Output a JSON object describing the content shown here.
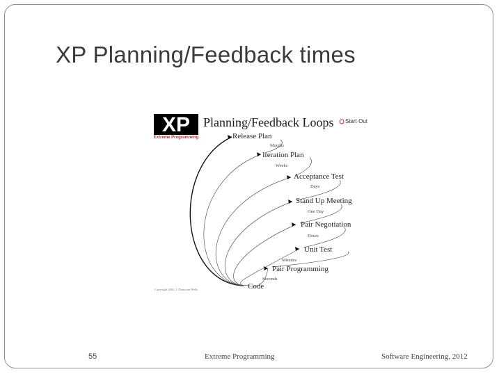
{
  "slide": {
    "title": "XP Planning/Feedback times",
    "number": "55",
    "footer_center": "Extreme Programming",
    "footer_right": "Software Engineering,   2012"
  },
  "diagram": {
    "logo_text": "XP",
    "logo_caption": "Extreme Programming",
    "heading": "Planning/Feedback Loops",
    "brand_tag": "Start Out",
    "copyright": "Copyright 2001, J. Donovan Wells",
    "stages": [
      {
        "name": "Release Plan",
        "time": "Months"
      },
      {
        "name": "Iteration Plan",
        "time": "Weeks"
      },
      {
        "name": "Acceptance Test",
        "time": "Days"
      },
      {
        "name": "Stand Up Meeting",
        "time": "One Day"
      },
      {
        "name": "Pair Negotiation",
        "time": "Hours"
      },
      {
        "name": "Unit Test",
        "time": "Minutes"
      },
      {
        "name": "Pair Programming",
        "time": "Seconds"
      },
      {
        "name": "Code",
        "time": ""
      }
    ]
  }
}
